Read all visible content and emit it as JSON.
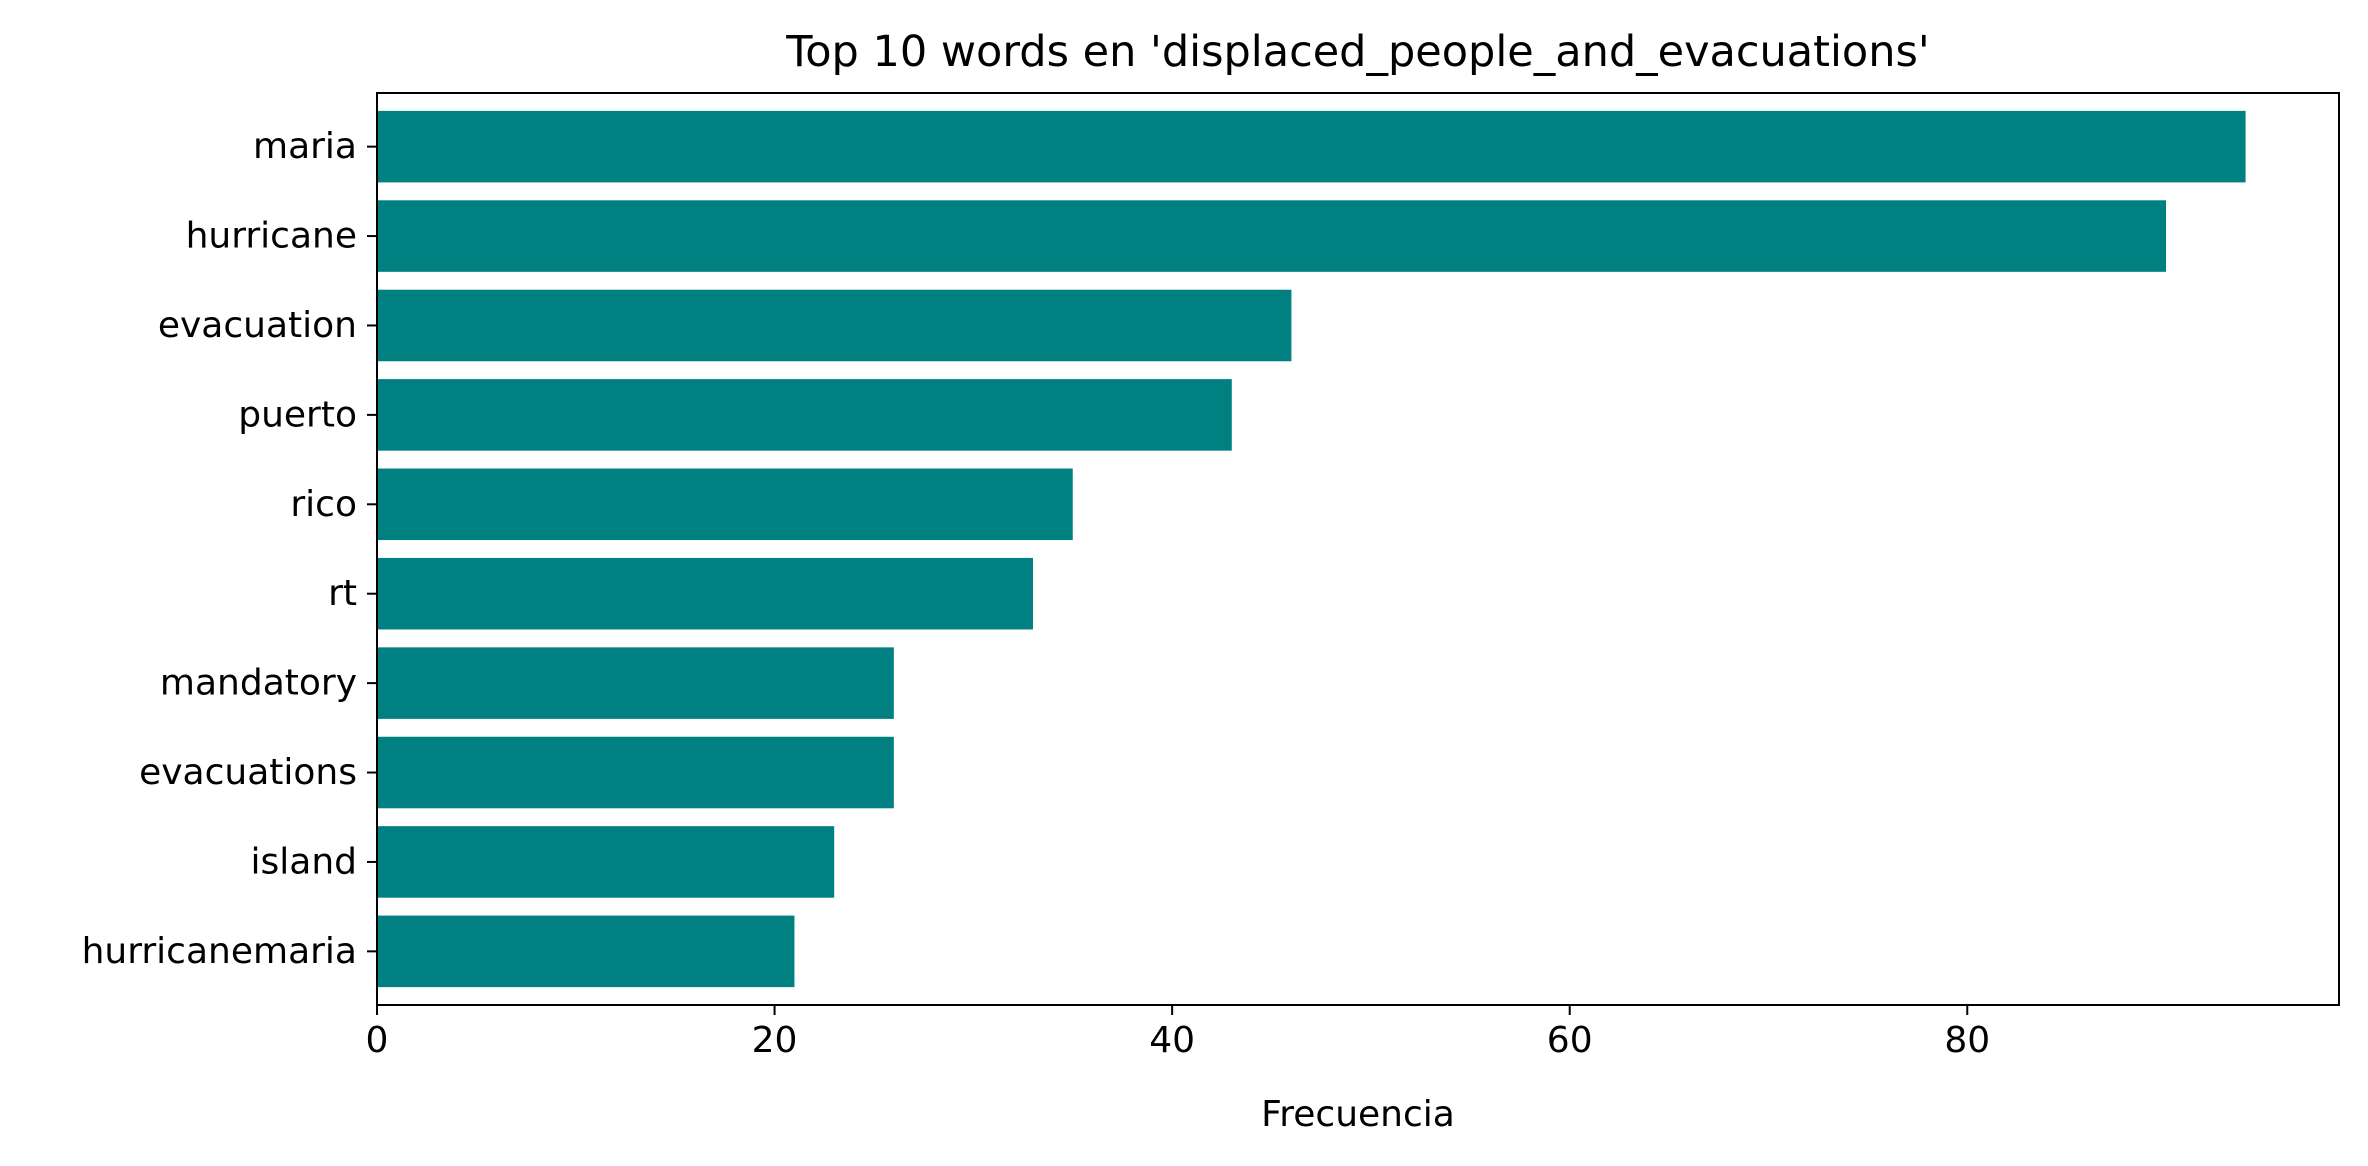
{
  "chart_data": {
    "type": "bar",
    "orientation": "horizontal",
    "title": "Top 10 words en 'displaced_people_and_evacuations'",
    "xlabel": "Frecuencia",
    "ylabel": "",
    "categories": [
      "maria",
      "hurricane",
      "evacuation",
      "puerto",
      "rico",
      "rt",
      "mandatory",
      "evacuations",
      "island",
      "hurricanemaria"
    ],
    "values": [
      94,
      90,
      46,
      43,
      35,
      33,
      26,
      26,
      23,
      21
    ],
    "xlim": [
      0,
      98.7
    ],
    "xticks": [
      0,
      20,
      40,
      60,
      80
    ],
    "bar_color": "#008080",
    "grid": false,
    "legend": "none"
  }
}
